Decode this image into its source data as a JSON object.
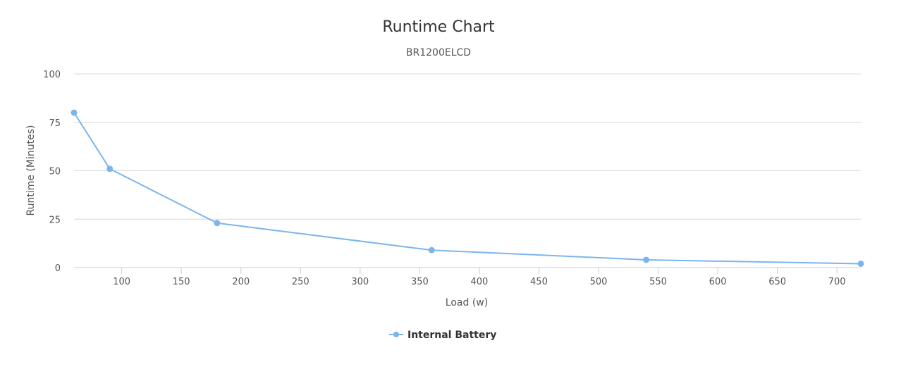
{
  "chart_data": {
    "type": "line",
    "title": "Runtime Chart",
    "subtitle": "BR1200ELCD",
    "xlabel": "Load (w)",
    "ylabel": "Runtime (Minutes)",
    "xlim": [
      60,
      720
    ],
    "ylim": [
      0,
      100
    ],
    "xticks": [
      100,
      150,
      200,
      250,
      300,
      350,
      400,
      450,
      500,
      550,
      600,
      650,
      700
    ],
    "yticks": [
      0,
      25,
      50,
      75,
      100
    ],
    "grid": true,
    "legend_position": "bottom-center",
    "series": [
      {
        "name": "Internal Battery",
        "color": "#7cb5ec",
        "x": [
          60,
          90,
          180,
          360,
          540,
          720
        ],
        "y": [
          80,
          51,
          23,
          9,
          4,
          2
        ]
      }
    ]
  }
}
